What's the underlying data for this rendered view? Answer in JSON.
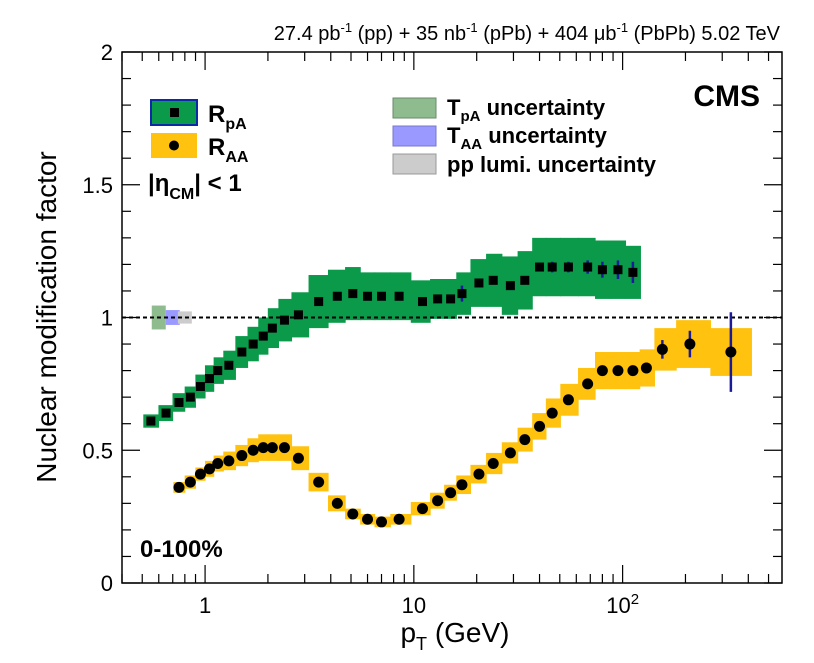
{
  "chart_data": {
    "type": "scatter",
    "header": {
      "lumi_pp": "27.4 pb",
      "lumi_pp_exp": "-1",
      "lumi_pp_tag": " (pp) + ",
      "lumi_ppb": "35 nb",
      "lumi_ppb_exp": "-1",
      "lumi_ppb_tag": " (pPb) + ",
      "lumi_pbpb": "404 μb",
      "lumi_pbpb_exp": "-1",
      "lumi_pbpb_tag": " (PbPb) 5.02 TeV"
    },
    "experiment": "CMS",
    "centrality": "0-100%",
    "xlabel": {
      "main": "p",
      "sub": "T",
      "unit": " (GeV)"
    },
    "ylabel": "Nuclear modification factor",
    "xscale": "log",
    "xlim": [
      0.4,
      580
    ],
    "ylim": [
      0,
      2
    ],
    "x_ticks": [
      {
        "value": 1,
        "label": "1"
      },
      {
        "value": 10,
        "label": "10"
      },
      {
        "value": 100,
        "label": "10",
        "exp": "2"
      }
    ],
    "y_ticks": [
      {
        "value": 0,
        "label": "0"
      },
      {
        "value": 0.5,
        "label": "0.5"
      },
      {
        "value": 1,
        "label": "1"
      },
      {
        "value": 1.5,
        "label": "1.5"
      },
      {
        "value": 2,
        "label": "2"
      }
    ],
    "reference_line": 1,
    "legend": {
      "rpa": {
        "main": "R",
        "sub": "pA"
      },
      "raa": {
        "main": "R",
        "sub": "AA"
      },
      "eta": {
        "pre": "|η",
        "sub": "CM",
        "post": "| < 1"
      },
      "tpa": {
        "main": "T",
        "sub": "pA",
        "post": " uncertainty"
      },
      "taa": {
        "main": "T",
        "sub": "AA",
        "post": " uncertainty"
      },
      "lumi": {
        "label": "pp lumi. uncertainty"
      }
    },
    "norm_boxes": [
      {
        "name": "T_pA uncertainty",
        "x": 0.6,
        "half": 0.045,
        "color": "#8fbc8f"
      },
      {
        "name": "T_AA uncertainty",
        "x": 0.7,
        "half": 0.028,
        "color": "#9999ff"
      },
      {
        "name": "pp lumi uncertainty",
        "x": 0.8,
        "half": 0.023,
        "color": "#cccccc"
      }
    ],
    "series": [
      {
        "name": "R_pA",
        "marker": "square",
        "band_color": "#0a9a4a",
        "x": [
          0.55,
          0.65,
          0.75,
          0.85,
          0.95,
          1.05,
          1.15,
          1.3,
          1.5,
          1.7,
          1.9,
          2.1,
          2.4,
          2.8,
          3.5,
          4.3,
          5.1,
          6.0,
          7.0,
          8.5,
          11.0,
          13.0,
          15.0,
          17.0,
          20.5,
          24.0,
          29.0,
          34.0,
          40.0,
          46.0,
          55.0,
          68.0,
          80.0,
          95.0,
          112.0
        ],
        "y": [
          0.61,
          0.64,
          0.68,
          0.7,
          0.74,
          0.77,
          0.8,
          0.82,
          0.87,
          0.9,
          0.93,
          0.96,
          0.99,
          1.01,
          1.06,
          1.08,
          1.09,
          1.08,
          1.08,
          1.08,
          1.06,
          1.07,
          1.07,
          1.09,
          1.13,
          1.14,
          1.12,
          1.14,
          1.19,
          1.19,
          1.19,
          1.19,
          1.18,
          1.18,
          1.17
        ],
        "syst": [
          0.025,
          0.03,
          0.035,
          0.04,
          0.045,
          0.05,
          0.05,
          0.055,
          0.06,
          0.065,
          0.07,
          0.075,
          0.08,
          0.085,
          0.1,
          0.1,
          0.1,
          0.09,
          0.09,
          0.09,
          0.08,
          0.075,
          0.075,
          0.08,
          0.09,
          0.1,
          0.11,
          0.11,
          0.11,
          0.11,
          0.11,
          0.11,
          0.11,
          0.11,
          0.1
        ],
        "stat": [
          0.005,
          0.005,
          0.005,
          0.005,
          0.005,
          0.005,
          0.005,
          0.005,
          0.005,
          0.005,
          0.005,
          0.005,
          0.005,
          0.005,
          0.005,
          0.005,
          0.005,
          0.005,
          0.005,
          0.005,
          0.01,
          0.01,
          0.015,
          0.03,
          0.015,
          0.015,
          0.015,
          0.015,
          0.015,
          0.02,
          0.02,
          0.025,
          0.03,
          0.035,
          0.04
        ]
      },
      {
        "name": "R_AA",
        "marker": "circle",
        "band_color": "#ffc20e",
        "x": [
          0.75,
          0.85,
          0.95,
          1.05,
          1.15,
          1.3,
          1.5,
          1.7,
          1.9,
          2.1,
          2.4,
          2.8,
          3.5,
          4.3,
          5.1,
          6.0,
          7.0,
          8.5,
          11.0,
          13.0,
          15.0,
          17.0,
          20.5,
          24.0,
          29.0,
          34.0,
          40.0,
          46.0,
          55.0,
          68.0,
          80.0,
          95.0,
          112.0,
          130.0,
          155.0,
          210.0,
          330.0
        ],
        "y": [
          0.36,
          0.38,
          0.41,
          0.43,
          0.45,
          0.46,
          0.48,
          0.5,
          0.51,
          0.51,
          0.51,
          0.47,
          0.38,
          0.3,
          0.26,
          0.24,
          0.23,
          0.24,
          0.28,
          0.31,
          0.34,
          0.37,
          0.41,
          0.45,
          0.49,
          0.54,
          0.59,
          0.64,
          0.69,
          0.75,
          0.8,
          0.8,
          0.8,
          0.81,
          0.88,
          0.9,
          0.87
        ],
        "syst": [
          0.02,
          0.025,
          0.025,
          0.03,
          0.03,
          0.035,
          0.04,
          0.045,
          0.05,
          0.05,
          0.05,
          0.045,
          0.035,
          0.03,
          0.02,
          0.02,
          0.02,
          0.02,
          0.025,
          0.03,
          0.03,
          0.035,
          0.035,
          0.04,
          0.04,
          0.045,
          0.05,
          0.055,
          0.06,
          0.06,
          0.07,
          0.07,
          0.07,
          0.07,
          0.08,
          0.09,
          0.09
        ],
        "stat": [
          0.005,
          0.005,
          0.005,
          0.005,
          0.005,
          0.005,
          0.005,
          0.005,
          0.005,
          0.005,
          0.005,
          0.005,
          0.005,
          0.005,
          0.005,
          0.005,
          0.005,
          0.005,
          0.005,
          0.005,
          0.005,
          0.005,
          0.005,
          0.005,
          0.005,
          0.005,
          0.005,
          0.005,
          0.005,
          0.01,
          0.01,
          0.01,
          0.015,
          0.02,
          0.035,
          0.05,
          0.15
        ]
      }
    ]
  }
}
